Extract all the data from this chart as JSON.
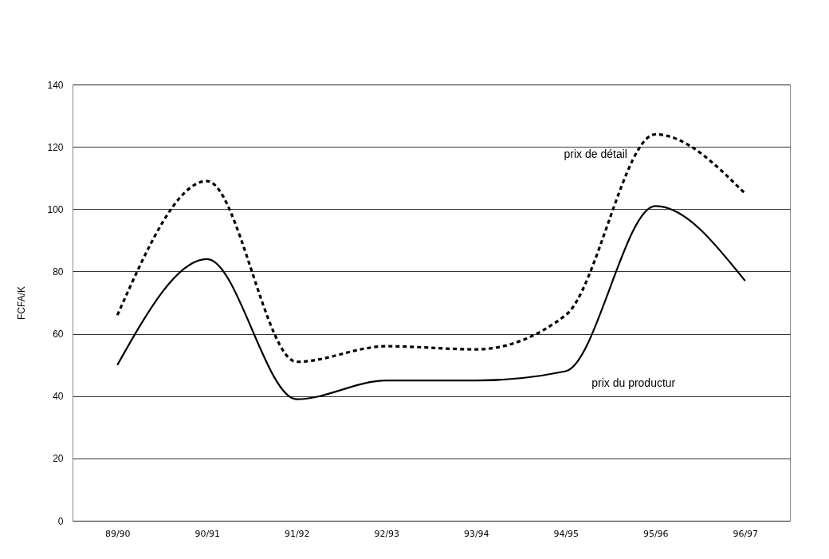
{
  "chart_data": {
    "type": "line",
    "ylabel": "FCFA/K",
    "categories": [
      "89/90",
      "90/91",
      "91/92",
      "92/93",
      "93/94",
      "94/95",
      "95/96",
      "96/97"
    ],
    "series": [
      {
        "name": "prix de détail",
        "color": "#000000",
        "line_style": "dashed",
        "values": [
          66,
          109,
          51,
          56,
          55,
          66,
          124,
          105
        ]
      },
      {
        "name": "prix du productur",
        "color": "#000000",
        "line_style": "solid",
        "values": [
          50,
          84,
          39,
          45,
          45,
          48,
          101,
          77
        ]
      }
    ],
    "ylim": [
      0,
      140
    ],
    "yticks": [
      0,
      20,
      40,
      60,
      80,
      100,
      120,
      140
    ],
    "grid": "y",
    "legend": false
  }
}
